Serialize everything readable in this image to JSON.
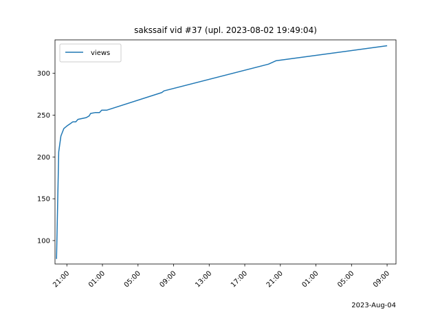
{
  "chart_data": {
    "type": "line",
    "title": "sakssaif vid #37 (upl. 2023-08-02 19:49:04)",
    "xlabel": "",
    "ylabel": "",
    "x_offset_label": "2023-Aug-04",
    "legend": {
      "position": "upper-left",
      "entries": [
        "views"
      ]
    },
    "grid": false,
    "xlim": [
      "2023-08-02 19:40",
      "2023-08-04 10:00"
    ],
    "ylim": [
      72,
      340
    ],
    "x_ticks": [
      {
        "t": "2023-08-02 21:00",
        "label": "21:00"
      },
      {
        "t": "2023-08-03 01:00",
        "label": "01:00"
      },
      {
        "t": "2023-08-03 05:00",
        "label": "05:00"
      },
      {
        "t": "2023-08-03 09:00",
        "label": "09:00"
      },
      {
        "t": "2023-08-03 13:00",
        "label": "13:00"
      },
      {
        "t": "2023-08-03 17:00",
        "label": "17:00"
      },
      {
        "t": "2023-08-03 21:00",
        "label": "21:00"
      },
      {
        "t": "2023-08-04 01:00",
        "label": "01:00"
      },
      {
        "t": "2023-08-04 05:00",
        "label": "05:00"
      },
      {
        "t": "2023-08-04 09:00",
        "label": "09:00"
      }
    ],
    "y_ticks": [
      100,
      150,
      200,
      250,
      300
    ],
    "series": [
      {
        "name": "views",
        "color": "#1f77b4",
        "points": [
          {
            "x": "2023-08-02 19:50",
            "y": 78
          },
          {
            "x": "2023-08-02 20:05",
            "y": 206
          },
          {
            "x": "2023-08-02 20:20",
            "y": 225
          },
          {
            "x": "2023-08-02 20:40",
            "y": 234
          },
          {
            "x": "2023-08-02 21:00",
            "y": 237
          },
          {
            "x": "2023-08-02 21:25",
            "y": 240
          },
          {
            "x": "2023-08-02 21:40",
            "y": 242
          },
          {
            "x": "2023-08-02 22:00",
            "y": 242
          },
          {
            "x": "2023-08-02 22:15",
            "y": 245
          },
          {
            "x": "2023-08-02 23:10",
            "y": 247
          },
          {
            "x": "2023-08-02 23:30",
            "y": 249
          },
          {
            "x": "2023-08-02 23:40",
            "y": 252
          },
          {
            "x": "2023-08-03 00:10",
            "y": 253
          },
          {
            "x": "2023-08-03 00:40",
            "y": 253
          },
          {
            "x": "2023-08-03 00:55",
            "y": 256
          },
          {
            "x": "2023-08-03 01:30",
            "y": 256
          },
          {
            "x": "2023-08-03 07:40",
            "y": 277
          },
          {
            "x": "2023-08-03 07:55",
            "y": 279
          },
          {
            "x": "2023-08-03 19:40",
            "y": 311
          },
          {
            "x": "2023-08-03 20:30",
            "y": 315
          },
          {
            "x": "2023-08-04 09:00",
            "y": 333
          }
        ]
      }
    ]
  }
}
